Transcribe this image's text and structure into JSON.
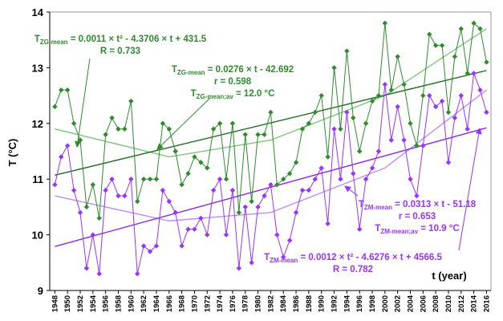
{
  "chart_data": {
    "type": "line",
    "y_label": "T (°C)",
    "x_label": "t (year)",
    "xlim": [
      1947.2,
      2016.7
    ],
    "ylim": [
      9,
      14
    ],
    "yticks": [
      9,
      10,
      11,
      12,
      13,
      14
    ],
    "xticks": [
      1948,
      1950,
      1952,
      1954,
      1956,
      1958,
      1960,
      1962,
      1964,
      1966,
      1968,
      1970,
      1972,
      1974,
      1976,
      1978,
      1980,
      1982,
      1984,
      1986,
      1988,
      1990,
      1992,
      1994,
      1996,
      1998,
      2000,
      2002,
      2004,
      2006,
      2008,
      2010,
      2012,
      2014,
      2016
    ],
    "x": [
      1948,
      1949,
      1950,
      1951,
      1952,
      1953,
      1954,
      1955,
      1956,
      1957,
      1958,
      1959,
      1960,
      1961,
      1962,
      1963,
      1964,
      1965,
      1966,
      1967,
      1968,
      1969,
      1970,
      1971,
      1972,
      1973,
      1974,
      1975,
      1976,
      1977,
      1978,
      1979,
      1980,
      1981,
      1982,
      1983,
      1984,
      1985,
      1986,
      1987,
      1988,
      1989,
      1990,
      1991,
      1992,
      1993,
      1994,
      1995,
      1996,
      1997,
      1998,
      1999,
      2000,
      2001,
      2002,
      2003,
      2004,
      2005,
      2006,
      2007,
      2008,
      2009,
      2010,
      2011,
      2012,
      2013,
      2014,
      2015,
      2016
    ],
    "series": [
      {
        "color": "#2e8b2e",
        "values": [
          12.3,
          12.6,
          12.6,
          12.0,
          11.7,
          10.5,
          10.9,
          10.3,
          11.8,
          12.1,
          11.9,
          11.9,
          12.4,
          10.6,
          11.0,
          11.0,
          11.0,
          12.0,
          11.9,
          11.5,
          10.9,
          11.1,
          11.4,
          11.3,
          11.2,
          11.9,
          12.0,
          11.0,
          12.0,
          10.4,
          11.8,
          10.6,
          11.8,
          11.8,
          12.2,
          10.9,
          11.0,
          11.1,
          11.3,
          11.9,
          12.0,
          12.2,
          12.5,
          11.4,
          13.0,
          11.9,
          13.3,
          12.1,
          11.5,
          12.0,
          12.4,
          12.5,
          13.8,
          12.6,
          13.2,
          12.7,
          12.0,
          11.6,
          12.5,
          13.6,
          13.4,
          13.4,
          12.2,
          13.2,
          13.7,
          12.9,
          13.8,
          13.7,
          13.1
        ]
      },
      {
        "color": "#9933ff",
        "values": [
          10.9,
          11.4,
          11.6,
          10.8,
          10.4,
          9.4,
          10.0,
          9.3,
          10.8,
          11.0,
          10.7,
          10.7,
          11.0,
          9.3,
          9.8,
          9.7,
          9.8,
          10.8,
          10.6,
          10.4,
          9.8,
          10.1,
          10.1,
          10.3,
          10.0,
          10.8,
          11.0,
          10.0,
          10.8,
          9.4,
          10.5,
          9.5,
          10.5,
          10.7,
          10.9,
          10.0,
          9.6,
          9.9,
          10.4,
          10.8,
          10.8,
          11.0,
          11.2,
          10.2,
          11.9,
          11.0,
          12.2,
          11.1,
          10.1,
          11.0,
          11.2,
          11.5,
          12.7,
          11.7,
          12.3,
          11.7,
          11.0,
          10.7,
          11.6,
          12.5,
          12.3,
          12.4,
          11.3,
          12.1,
          12.5,
          11.9,
          12.9,
          12.6,
          12.2
        ]
      }
    ],
    "trend_lines": [
      {
        "color": "#7dc47d",
        "x": [
          1948,
          1966,
          1982,
          2000,
          2016
        ],
        "values": [
          11.9,
          11.4,
          11.7,
          12.5,
          13.7
        ]
      },
      {
        "color": "#1e6b1e",
        "x": [
          1948,
          2016
        ],
        "values": [
          11.07,
          12.95
        ]
      },
      {
        "color": "#c08cf5",
        "x": [
          1948,
          1966,
          1982,
          2000,
          2016
        ],
        "values": [
          10.7,
          10.25,
          10.4,
          11.2,
          12.6
        ]
      },
      {
        "color": "#8a2be2",
        "x": [
          1948,
          2016
        ],
        "values": [
          9.79,
          11.92
        ]
      }
    ],
    "annotations": [
      {
        "color": "#2e8b2e",
        "lines": [
          {
            "main": "T",
            "sub": "ZG-mean",
            "rest": " = 0.0011 × t² - 4.3706 × t + 431.5"
          },
          {
            "main": "R = 0.733"
          }
        ]
      },
      {
        "color": "#2e8b2e",
        "lines": [
          {
            "main": "T",
            "sub": "ZG-mean",
            "rest": " = 0.0276 × t - 42.692"
          },
          {
            "main": "r = 0.598"
          },
          {
            "main": "T",
            "sub": "ZG-mean;av",
            "rest": " = 12.0 °C"
          }
        ]
      },
      {
        "color": "#9933ff",
        "lines": [
          {
            "main": "T",
            "sub": "ZM-mean",
            "rest": " = 0.0313 × t - 51.18"
          },
          {
            "main": "r = 0.653"
          },
          {
            "main": "T",
            "sub": "ZM-mean;av",
            "rest": " = 10.9 °C"
          }
        ]
      },
      {
        "color": "#9933ff",
        "lines": [
          {
            "main": "T",
            "sub": "ZM-mean",
            "rest": " = 0.0012 × t² - 4.6276 × t + 4566.5"
          },
          {
            "main": "R = 0.782"
          }
        ]
      }
    ]
  }
}
